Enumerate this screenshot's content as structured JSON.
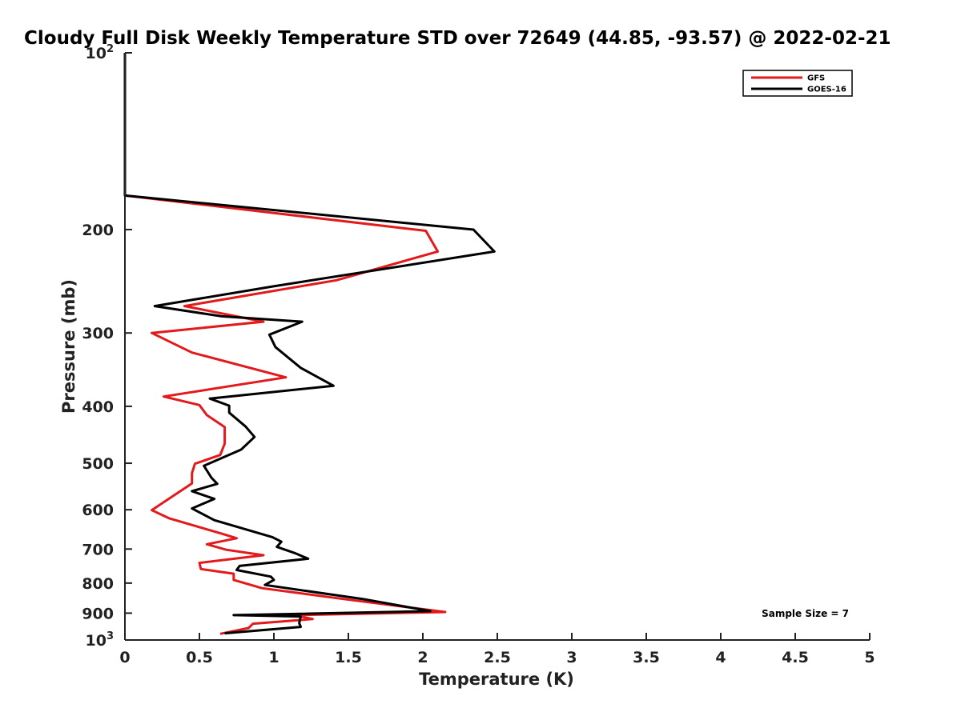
{
  "chart_data": {
    "type": "line",
    "title": "Cloudy Full Disk Weekly Temperature STD over 72649 (44.85, -93.57) @ 2022-02-21",
    "xlabel": "Temperature (K)",
    "ylabel": "Pressure (mb)",
    "xlim": [
      0,
      5
    ],
    "ylim": [
      1000,
      100
    ],
    "y_scale": "log",
    "y_reversed": true,
    "grid": false,
    "legend_placement": "top-right",
    "x_ticks": [
      {
        "value": 0,
        "label": "0"
      },
      {
        "value": 0.5,
        "label": "0.5"
      },
      {
        "value": 1,
        "label": "1"
      },
      {
        "value": 1.5,
        "label": "1.5"
      },
      {
        "value": 2,
        "label": "2"
      },
      {
        "value": 2.5,
        "label": "2.5"
      },
      {
        "value": 3,
        "label": "3"
      },
      {
        "value": 3.5,
        "label": "3.5"
      },
      {
        "value": 4,
        "label": "4"
      },
      {
        "value": 4.5,
        "label": "4.5"
      },
      {
        "value": 5,
        "label": "5"
      }
    ],
    "y_ticks": [
      {
        "value": 100,
        "base": "10",
        "exp": "2"
      },
      {
        "value": 200,
        "base": "200",
        "exp": ""
      },
      {
        "value": 300,
        "base": "300",
        "exp": ""
      },
      {
        "value": 400,
        "base": "400",
        "exp": ""
      },
      {
        "value": 500,
        "base": "500",
        "exp": ""
      },
      {
        "value": 600,
        "base": "600",
        "exp": ""
      },
      {
        "value": 700,
        "base": "700",
        "exp": ""
      },
      {
        "value": 800,
        "base": "800",
        "exp": ""
      },
      {
        "value": 900,
        "base": "900",
        "exp": ""
      },
      {
        "value": 1000,
        "base": "10",
        "exp": "3"
      }
    ],
    "series": [
      {
        "name": "GFS",
        "color": "#e31a1c",
        "points": [
          [
            0,
            100
          ],
          [
            0,
            175
          ],
          [
            2.02,
            201
          ],
          [
            2.1,
            218
          ],
          [
            1.42,
            244
          ],
          [
            0.4,
            270
          ],
          [
            0.93,
            287
          ],
          [
            0.18,
            300
          ],
          [
            0.45,
            324
          ],
          [
            1.08,
            357
          ],
          [
            0.26,
            385
          ],
          [
            0.5,
            398
          ],
          [
            0.55,
            414
          ],
          [
            0.67,
            434
          ],
          [
            0.67,
            463
          ],
          [
            0.64,
            484
          ],
          [
            0.47,
            501
          ],
          [
            0.45,
            520
          ],
          [
            0.45,
            541
          ],
          [
            0.18,
            601
          ],
          [
            0.3,
            621
          ],
          [
            0.65,
            659
          ],
          [
            0.75,
            671
          ],
          [
            0.55,
            687
          ],
          [
            0.68,
            702
          ],
          [
            0.93,
            717
          ],
          [
            0.5,
            739
          ],
          [
            0.51,
            757
          ],
          [
            0.73,
            771
          ],
          [
            0.73,
            790
          ],
          [
            0.92,
            816
          ],
          [
            1.49,
            853
          ],
          [
            2.15,
            896
          ],
          [
            1.14,
            907
          ],
          [
            1.26,
            921
          ],
          [
            0.86,
            938
          ],
          [
            0.83,
            954
          ],
          [
            0.64,
            976
          ]
        ]
      },
      {
        "name": "GOES-16",
        "color": "#000000",
        "points": [
          [
            0,
            100
          ],
          [
            0,
            175
          ],
          [
            2.34,
            200
          ],
          [
            2.48,
            218
          ],
          [
            0.99,
            250
          ],
          [
            0.2,
            270
          ],
          [
            0.65,
            281
          ],
          [
            1.19,
            287
          ],
          [
            0.97,
            302
          ],
          [
            1.01,
            317
          ],
          [
            1.18,
            344
          ],
          [
            1.4,
            369
          ],
          [
            0.57,
            388
          ],
          [
            0.7,
            399
          ],
          [
            0.7,
            410
          ],
          [
            0.81,
            433
          ],
          [
            0.87,
            451
          ],
          [
            0.78,
            474
          ],
          [
            0.53,
            505
          ],
          [
            0.58,
            529
          ],
          [
            0.62,
            542
          ],
          [
            0.45,
            558
          ],
          [
            0.6,
            575
          ],
          [
            0.45,
            597
          ],
          [
            0.6,
            625
          ],
          [
            0.99,
            668
          ],
          [
            1.05,
            680
          ],
          [
            1.02,
            694
          ],
          [
            1.14,
            711
          ],
          [
            1.23,
            727
          ],
          [
            0.77,
            748
          ],
          [
            0.75,
            760
          ],
          [
            0.98,
            780
          ],
          [
            1.0,
            790
          ],
          [
            0.94,
            806
          ],
          [
            1.6,
            852
          ],
          [
            2.05,
            893
          ],
          [
            0.73,
            907
          ],
          [
            1.18,
            912
          ],
          [
            1.17,
            936
          ],
          [
            1.18,
            950
          ],
          [
            0.67,
            974
          ]
        ]
      }
    ],
    "annotations": [
      {
        "text": "Sample Size = 7",
        "position": "bottom-right"
      }
    ]
  }
}
